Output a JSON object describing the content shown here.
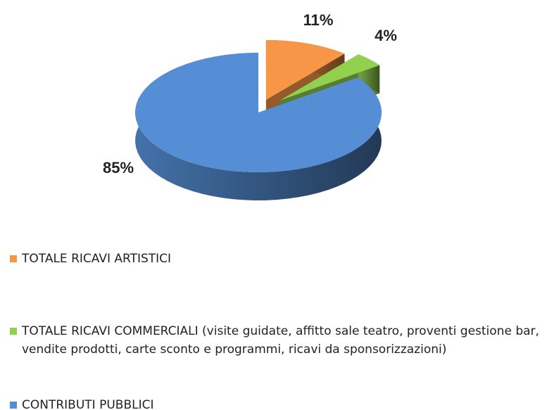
{
  "chart_data": {
    "type": "pie",
    "categories": [
      "TOTALE RICAVI ARTISTICI",
      "TOTALE RICAVI COMMERCIALI (visite guidate, affitto sale teatro, proventi gestione bar, vendite prodotti, carte sconto e programmi, ricavi da sponsorizzazioni)",
      "CONTRIBUTI PUBBLICI"
    ],
    "values": [
      11,
      4,
      85
    ],
    "value_labels": [
      "11%",
      "4%",
      "85%"
    ],
    "colors": [
      "#f79646",
      "#92d050",
      "#558ed5"
    ],
    "legend": "bottom"
  }
}
